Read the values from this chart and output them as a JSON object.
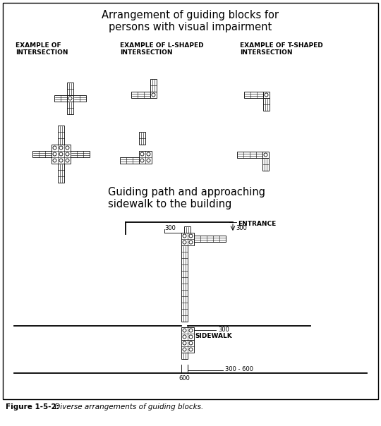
{
  "title": "Arrangement of guiding blocks for\npersons with visual impairment",
  "subtitle": "Guiding path and approaching\nsidewalk to the building",
  "caption_bold": "Figure 1-5-2:",
  "caption_italic": " Diverse arrangements of guiding blocks.",
  "label1": "EXAMPLE OF\nINTERSECTION",
  "label2": "EXAMPLE OF L-SHAPED\nINTERSECTION",
  "label3": "EXAMPLE OF T-SHAPED\nINTERSECTION",
  "entrance_label": "ENTRANCE",
  "sidewalk_label": "SIDEWALK",
  "dim300_right": "300",
  "dim300_left": "300",
  "dim300_mid": "300",
  "dim300_600": "300 - 600",
  "dim600": "600",
  "bg_color": "#ffffff",
  "line_color": "#000000"
}
